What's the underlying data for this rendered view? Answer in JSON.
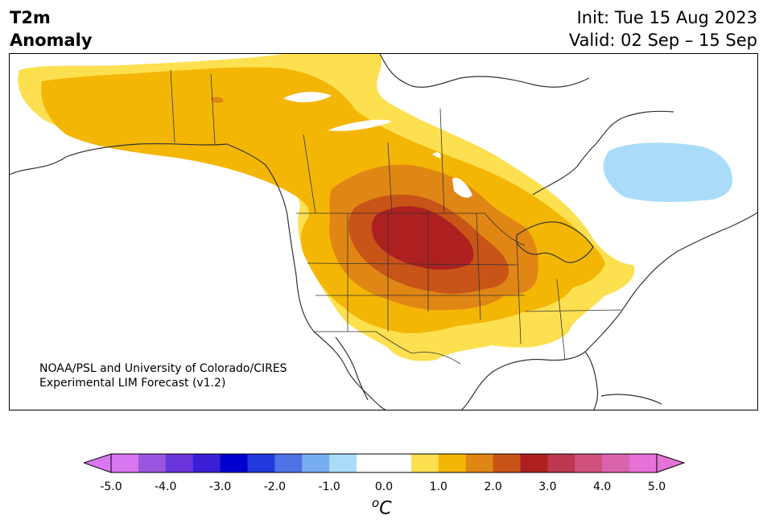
{
  "header": {
    "title_line1": "T2m",
    "title_line2": "Anomaly",
    "init": "Init: Tue 15 Aug 2023",
    "valid": "Valid: 02 Sep – 15 Sep"
  },
  "credit": {
    "line1": "NOAA/PSL and University of Colorado/CIRES",
    "line2": "Experimental LIM Forecast (v1.2)"
  },
  "colorbar": {
    "unit_base": "C",
    "unit_sup": "o",
    "ticks": [
      "-5.0",
      "-4.0",
      "-3.0",
      "-2.0",
      "-1.0",
      "0.0",
      "1.0",
      "2.0",
      "3.0",
      "4.0",
      "5.0"
    ],
    "colors": [
      "#d977f0",
      "#9a56e0",
      "#6b35dc",
      "#3a1fd6",
      "#0000cf",
      "#2038dc",
      "#4f72e6",
      "#77aef2",
      "#aadcfa",
      "#ffffff",
      "#ffffff",
      "#fde050",
      "#f3b605",
      "#e08614",
      "#c85418",
      "#ae2020",
      "#be3850",
      "#d0507e",
      "#da64ac",
      "#e672d8"
    ],
    "over_color": "#e672d8",
    "under_color": "#d977f0"
  },
  "map": {
    "colors": {
      "c0_5": "#fde050",
      "c1_0": "#f3b605",
      "c1_5": "#e08614",
      "c2_0": "#c85418",
      "c2_5": "#ae2020",
      "cneg": "#aadcfa",
      "coast": "#333333"
    }
  }
}
